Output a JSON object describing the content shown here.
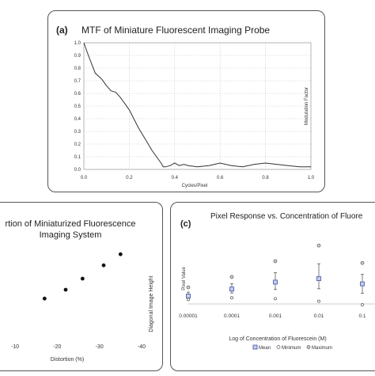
{
  "chart_data": [
    {
      "panel_label": "(a)",
      "type": "line",
      "title": "MTF of Miniature Fluorescent Imaging Probe",
      "xlabel": "Cycles/Pixel",
      "ylabel": "Modulation Factor",
      "xlim": [
        0,
        1
      ],
      "ylim": [
        0,
        1
      ],
      "x_ticks": [
        "0.0",
        "0.2",
        "0.4",
        "0.6",
        "0.8",
        "1.0"
      ],
      "y_ticks": [
        "0.0",
        "0.1",
        "0.2",
        "0.3",
        "0.4",
        "0.5",
        "0.6",
        "0.7",
        "0.8",
        "0.9",
        "1.0"
      ],
      "grid": true,
      "series": [
        {
          "x": [
            0.0,
            0.02,
            0.05,
            0.08,
            0.1,
            0.12,
            0.14,
            0.16,
            0.18,
            0.2,
            0.22,
            0.24,
            0.26,
            0.28,
            0.3,
            0.32,
            0.34,
            0.35,
            0.36,
            0.38,
            0.4,
            0.42,
            0.44,
            0.46,
            0.5,
            0.55,
            0.6,
            0.65,
            0.7,
            0.75,
            0.8,
            0.85,
            0.9,
            0.95,
            1.0
          ],
          "y": [
            1.0,
            0.9,
            0.76,
            0.71,
            0.66,
            0.62,
            0.61,
            0.57,
            0.52,
            0.47,
            0.4,
            0.33,
            0.27,
            0.21,
            0.15,
            0.1,
            0.05,
            0.02,
            0.02,
            0.03,
            0.05,
            0.03,
            0.04,
            0.03,
            0.02,
            0.03,
            0.05,
            0.03,
            0.02,
            0.04,
            0.05,
            0.04,
            0.03,
            0.02,
            0.02
          ]
        }
      ]
    },
    {
      "panel_label": "",
      "type": "scatter",
      "title_line1": "rtion of Miniaturized Fluorescence",
      "title_line2": "Imaging System",
      "xlabel": "Distortion (%)",
      "ylabel": "Diagonal Image Height",
      "x_ticks": [
        "-10",
        "-20",
        "-30",
        "-40"
      ],
      "series": [
        {
          "x": [
            -17,
            -22,
            -26,
            -31,
            -35
          ],
          "y": [
            0.42,
            0.5,
            0.6,
            0.72,
            0.82
          ]
        }
      ]
    },
    {
      "panel_label": "(c)",
      "type": "scatter",
      "title": "Pixel Response vs. Concentration of Fluore",
      "xlabel": "Log of Concentration of Fluorescein (M)",
      "ylabel": "Pixel Value",
      "x_scale": "log",
      "x_ticks": [
        "0.00001",
        "0.0001",
        "0.001",
        "0.01",
        "0.1"
      ],
      "legend": [
        "Mean",
        "Minimum",
        "Maximum"
      ],
      "legend_position": "bottom",
      "series": [
        {
          "name": "Mean",
          "x": [
            1e-05,
            0.0001,
            0.001,
            0.01,
            0.1
          ],
          "y": [
            0.2,
            0.28,
            0.36,
            0.4,
            0.34
          ]
        },
        {
          "name": "Minimum",
          "x": [
            1e-05,
            0.0001,
            0.001,
            0.01,
            0.1
          ],
          "y": [
            0.16,
            0.18,
            0.17,
            0.14,
            0.1
          ]
        },
        {
          "name": "Maximum",
          "x": [
            1e-05,
            0.0001,
            0.001,
            0.01,
            0.1
          ],
          "y": [
            0.3,
            0.42,
            0.6,
            0.78,
            0.58
          ]
        }
      ],
      "mean_color": "#3b4fa8"
    }
  ]
}
